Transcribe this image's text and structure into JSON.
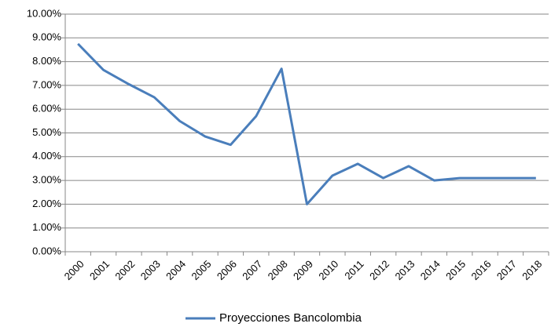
{
  "chart_data": {
    "type": "line",
    "categories": [
      "2000",
      "2001",
      "2002",
      "2003",
      "2004",
      "2005",
      "2006",
      "2007",
      "2008",
      "2009",
      "2010",
      "2011",
      "2012",
      "2013",
      "2014",
      "2015",
      "2016",
      "2017",
      "2018"
    ],
    "series": [
      {
        "name": "Proyecciones Bancolombia",
        "color": "#4a7ebb",
        "values": [
          8.75,
          7.65,
          7.05,
          6.5,
          5.5,
          4.85,
          4.5,
          5.7,
          7.7,
          2.0,
          3.2,
          3.7,
          3.1,
          3.6,
          3.0,
          3.1,
          3.1,
          3.1,
          3.1
        ]
      }
    ],
    "ylim": [
      0,
      10
    ],
    "yticks": [
      {
        "value": 0,
        "label": "0.00%"
      },
      {
        "value": 1,
        "label": "1.00%"
      },
      {
        "value": 2,
        "label": "2.00%"
      },
      {
        "value": 3,
        "label": "3.00%"
      },
      {
        "value": 4,
        "label": "4.00%"
      },
      {
        "value": 5,
        "label": "5.00%"
      },
      {
        "value": 6,
        "label": "6.00%"
      },
      {
        "value": 7,
        "label": "7.00%"
      },
      {
        "value": 8,
        "label": "8.00%"
      },
      {
        "value": 9,
        "label": "9.00%"
      },
      {
        "value": 10,
        "label": "10.00%"
      }
    ],
    "grid": true,
    "legend": "bottom"
  }
}
